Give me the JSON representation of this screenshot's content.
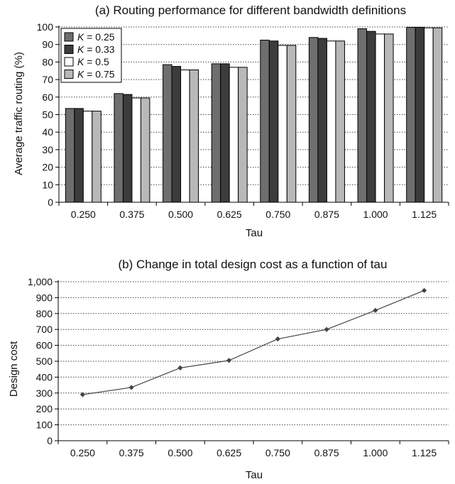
{
  "chart_data": [
    {
      "type": "bar",
      "title": "(a) Routing performance for different bandwidth definitions",
      "xlabel": "Tau",
      "ylabel": "Average traffic routing (%)",
      "ylim": [
        0,
        100
      ],
      "yticks": [
        0,
        10,
        20,
        30,
        40,
        50,
        60,
        70,
        80,
        90,
        100
      ],
      "grid": true,
      "legend_position": "top-left",
      "categories": [
        "0.250",
        "0.375",
        "0.500",
        "0.625",
        "0.750",
        "0.875",
        "1.000",
        "1.125"
      ],
      "series": [
        {
          "name_prefix": "K",
          "name_suffix": " = 0.25",
          "color": "#6e6e6e",
          "values": [
            53.5,
            62,
            78.5,
            79,
            92.5,
            94,
            99,
            99.8
          ]
        },
        {
          "name_prefix": "K",
          "name_suffix": " = 0.33",
          "color": "#3c3c3c",
          "values": [
            53.5,
            61.5,
            77.5,
            79,
            92,
            93.5,
            97.5,
            99.8
          ]
        },
        {
          "name_prefix": "K",
          "name_suffix": " = 0.5",
          "color": "#ffffff",
          "values": [
            52,
            59.5,
            75.5,
            77,
            89.5,
            92,
            96,
            99.5
          ]
        },
        {
          "name_prefix": "K",
          "name_suffix": " = 0.75",
          "color": "#b8b8b8",
          "values": [
            52,
            59.5,
            75.5,
            77,
            89.5,
            92,
            96,
            99.5
          ]
        }
      ]
    },
    {
      "type": "line",
      "title": "(b) Change in total design cost as a function of tau",
      "xlabel": "Tau",
      "ylabel": "Design cost",
      "ylim": [
        0,
        1000
      ],
      "yticks": [
        "0",
        "100",
        "200",
        "300",
        "400",
        "500",
        "600",
        "700",
        "800",
        "900",
        "1,000"
      ],
      "grid": true,
      "categories": [
        "0.250",
        "0.375",
        "0.500",
        "0.625",
        "0.750",
        "0.875",
        "1.000",
        "1.125"
      ],
      "series": [
        {
          "color": "#444444",
          "values": [
            290,
            335,
            458,
            505,
            640,
            700,
            820,
            945
          ]
        }
      ]
    }
  ]
}
